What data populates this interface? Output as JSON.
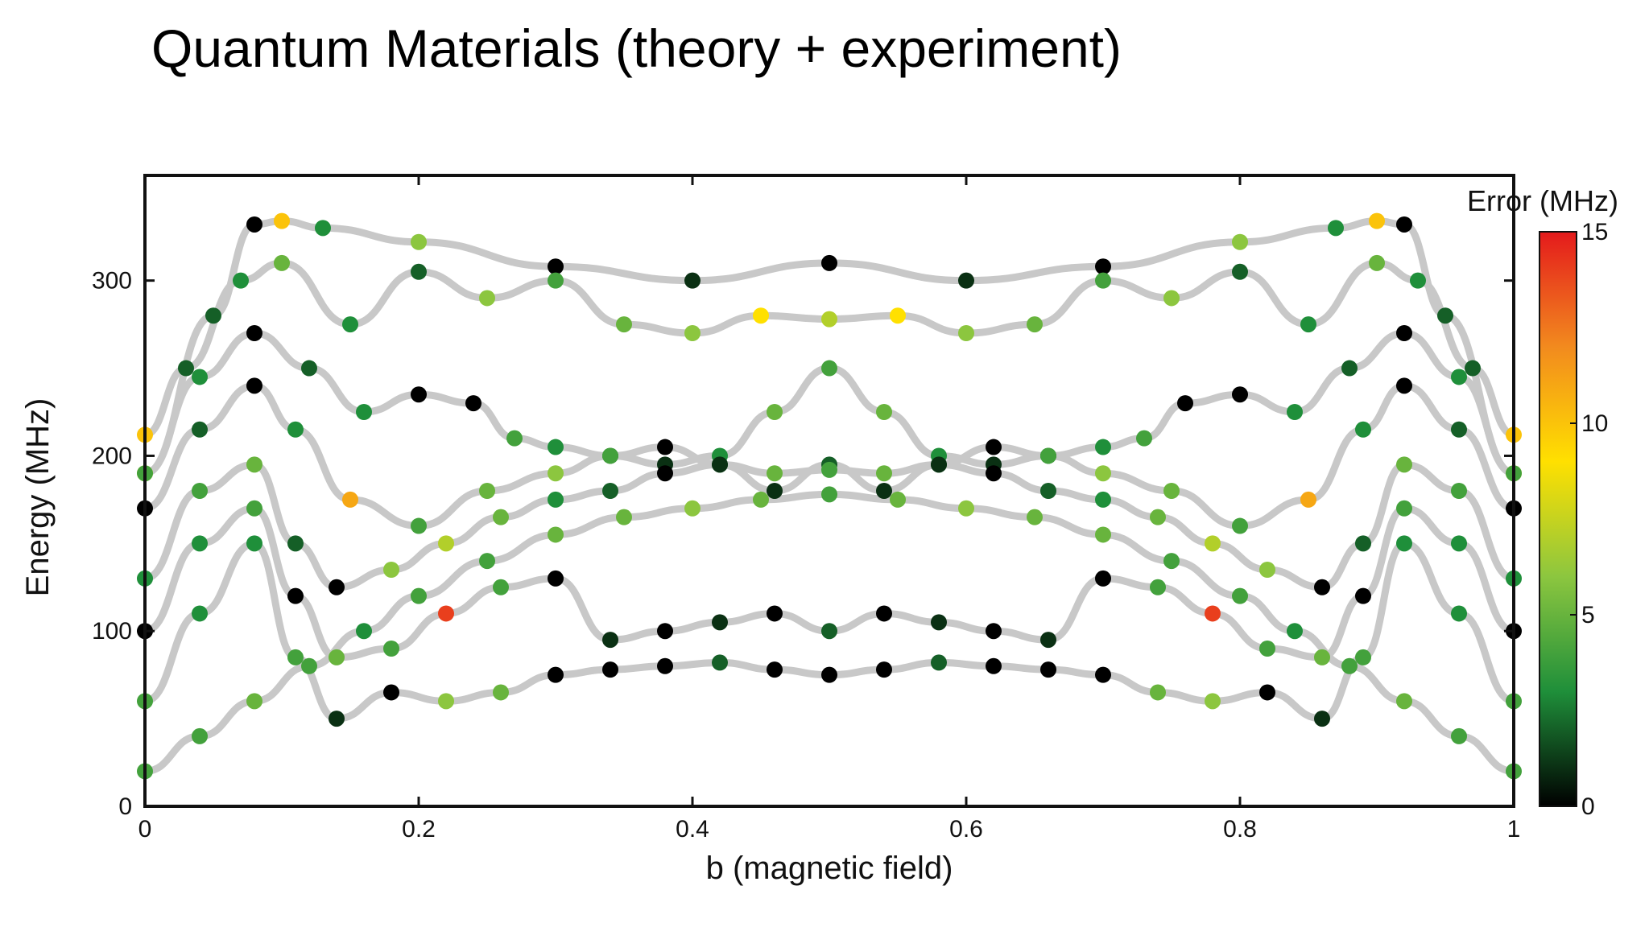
{
  "slide": {
    "title": "Quantum Materials (theory + experiment)"
  },
  "chart_data": {
    "type": "scatter",
    "xlabel": "b (magnetic field)",
    "ylabel": "Energy (MHz)",
    "xlim": [
      0,
      1
    ],
    "ylim": [
      0,
      360
    ],
    "xticks": [
      0,
      0.2,
      0.4,
      0.6,
      0.8,
      1
    ],
    "xtick_labels": [
      "0",
      "0.2",
      "0.4",
      "0.6",
      "0.8",
      "1"
    ],
    "yticks": [
      0,
      100,
      200,
      300
    ],
    "ytick_labels": [
      "0",
      "100",
      "200",
      "300"
    ],
    "grid": false,
    "colorbar": {
      "title": "Error (MHz)",
      "range": [
        0,
        15
      ],
      "ticks": [
        0,
        5,
        10,
        15
      ],
      "tick_labels": [
        "0",
        "5",
        "10",
        "15"
      ],
      "colormap": [
        "#000000",
        "#1f8f3a",
        "#8cc63f",
        "#ffe000",
        "#f28a1e",
        "#e41a1c"
      ]
    },
    "theory_curve_color": "#c8c8c8",
    "series": [
      {
        "x": [
          0,
          0.05,
          0.08,
          0.1,
          0.13,
          0.2,
          0.3,
          0.4,
          0.5,
          0.6,
          0.7,
          0.8,
          0.87,
          0.9,
          0.92,
          0.95,
          1
        ],
        "y": [
          190,
          280,
          332,
          334,
          330,
          322,
          308,
          300,
          310,
          300,
          308,
          322,
          330,
          334,
          332,
          280,
          190
        ],
        "errors": [
          9,
          2,
          0,
          10,
          3,
          6,
          0,
          1,
          0,
          1,
          0,
          6,
          3,
          10,
          0,
          2,
          9
        ]
      },
      {
        "x": [
          0,
          0.03,
          0.07,
          0.1,
          0.15,
          0.2,
          0.25,
          0.3,
          0.35,
          0.4,
          0.45,
          0.5,
          0.55,
          0.6,
          0.65,
          0.7,
          0.75,
          0.8,
          0.85,
          0.9,
          0.93,
          0.97,
          1
        ],
        "y": [
          212,
          250,
          300,
          310,
          275,
          305,
          290,
          300,
          275,
          270,
          280,
          278,
          280,
          270,
          275,
          300,
          290,
          305,
          275,
          310,
          300,
          250,
          212
        ],
        "errors": [
          10,
          2,
          3,
          5,
          3,
          2,
          6,
          4,
          5,
          6,
          9,
          7,
          9,
          6,
          5,
          4,
          6,
          2,
          3,
          5,
          3,
          2,
          10
        ]
      },
      {
        "x": [
          0,
          0.04,
          0.08,
          0.12,
          0.16,
          0.2,
          0.24,
          0.27,
          0.3,
          0.34,
          0.38,
          0.42,
          0.46,
          0.5,
          0.54,
          0.58,
          0.62,
          0.66,
          0.7,
          0.73,
          0.76,
          0.8,
          0.84,
          0.88,
          0.92,
          0.96,
          1
        ],
        "y": [
          190,
          245,
          270,
          250,
          225,
          235,
          230,
          210,
          205,
          200,
          195,
          200,
          225,
          250,
          225,
          200,
          195,
          200,
          205,
          210,
          230,
          235,
          225,
          250,
          270,
          245,
          190
        ],
        "errors": [
          4,
          3,
          0,
          2,
          3,
          0,
          0,
          4,
          3,
          2,
          1,
          3,
          5,
          4,
          5,
          3,
          1,
          2,
          3,
          4,
          0,
          0,
          3,
          2,
          0,
          3,
          4
        ]
      },
      {
        "x": [
          0,
          0.04,
          0.08,
          0.11,
          0.15,
          0.2,
          0.25,
          0.3,
          0.34,
          0.38,
          0.42,
          0.46,
          0.5,
          0.54,
          0.58,
          0.62,
          0.66,
          0.7,
          0.75,
          0.8,
          0.85,
          0.89,
          0.92,
          0.96,
          1
        ],
        "y": [
          170,
          215,
          240,
          215,
          175,
          160,
          180,
          190,
          200,
          205,
          195,
          180,
          195,
          180,
          195,
          205,
          200,
          190,
          180,
          160,
          175,
          215,
          240,
          215,
          170
        ],
        "errors": [
          0,
          2,
          0,
          3,
          11,
          4,
          5,
          6,
          4,
          0,
          3,
          1,
          2,
          1,
          3,
          0,
          4,
          6,
          5,
          4,
          11,
          3,
          0,
          2,
          0
        ]
      },
      {
        "x": [
          0,
          0.04,
          0.08,
          0.11,
          0.14,
          0.18,
          0.22,
          0.26,
          0.3,
          0.34,
          0.38,
          0.42,
          0.46,
          0.5,
          0.54,
          0.58,
          0.62,
          0.66,
          0.7,
          0.74,
          0.78,
          0.82,
          0.86,
          0.89,
          0.92,
          0.96,
          1
        ],
        "y": [
          130,
          180,
          195,
          150,
          125,
          135,
          150,
          165,
          175,
          180,
          190,
          195,
          190,
          192,
          190,
          195,
          190,
          180,
          175,
          165,
          150,
          135,
          125,
          150,
          195,
          180,
          130
        ],
        "errors": [
          3,
          4,
          5,
          2,
          0,
          6,
          7,
          5,
          3,
          2,
          0,
          1,
          5,
          4,
          5,
          1,
          0,
          2,
          3,
          5,
          7,
          6,
          0,
          2,
          5,
          4,
          3
        ]
      },
      {
        "x": [
          0,
          0.04,
          0.08,
          0.11,
          0.14,
          0.18,
          0.22,
          0.26,
          0.3,
          0.34,
          0.38,
          0.42,
          0.46,
          0.5,
          0.54,
          0.58,
          0.62,
          0.66,
          0.7,
          0.74,
          0.78,
          0.82,
          0.86,
          0.89,
          0.92,
          0.96,
          1
        ],
        "y": [
          100,
          150,
          170,
          120,
          85,
          90,
          110,
          125,
          130,
          95,
          100,
          105,
          110,
          100,
          110,
          105,
          100,
          95,
          130,
          125,
          110,
          90,
          85,
          120,
          170,
          150,
          100
        ],
        "errors": [
          0,
          3,
          4,
          0,
          5,
          4,
          14,
          4,
          0,
          1,
          0,
          1,
          0,
          2,
          0,
          1,
          0,
          1,
          0,
          4,
          14,
          4,
          5,
          0,
          4,
          3,
          0
        ]
      },
      {
        "x": [
          0,
          0.04,
          0.08,
          0.11,
          0.14,
          0.18,
          0.22,
          0.26,
          0.3,
          0.34,
          0.38,
          0.42,
          0.46,
          0.5,
          0.54,
          0.58,
          0.62,
          0.66,
          0.7,
          0.74,
          0.78,
          0.82,
          0.86,
          0.89,
          0.92,
          0.96,
          1
        ],
        "y": [
          60,
          110,
          150,
          85,
          50,
          65,
          60,
          65,
          75,
          78,
          80,
          82,
          78,
          75,
          78,
          82,
          80,
          78,
          75,
          65,
          60,
          65,
          50,
          85,
          150,
          110,
          60
        ],
        "errors": [
          4,
          3,
          3,
          4,
          1,
          0,
          6,
          5,
          0,
          0,
          0,
          2,
          0,
          0,
          0,
          2,
          0,
          0,
          0,
          5,
          6,
          0,
          1,
          4,
          3,
          3,
          4
        ]
      },
      {
        "x": [
          0,
          0.04,
          0.08,
          0.12,
          0.16,
          0.2,
          0.25,
          0.3,
          0.35,
          0.4,
          0.45,
          0.5,
          0.55,
          0.6,
          0.65,
          0.7,
          0.75,
          0.8,
          0.84,
          0.88,
          0.92,
          0.96,
          1
        ],
        "y": [
          20,
          40,
          60,
          80,
          100,
          120,
          140,
          155,
          165,
          170,
          175,
          178,
          175,
          170,
          165,
          155,
          140,
          120,
          100,
          80,
          60,
          40,
          20
        ],
        "errors": [
          4,
          4,
          5,
          4,
          3,
          4,
          4,
          5,
          5,
          6,
          5,
          4,
          5,
          6,
          5,
          5,
          4,
          4,
          3,
          4,
          5,
          4,
          4
        ]
      }
    ]
  }
}
